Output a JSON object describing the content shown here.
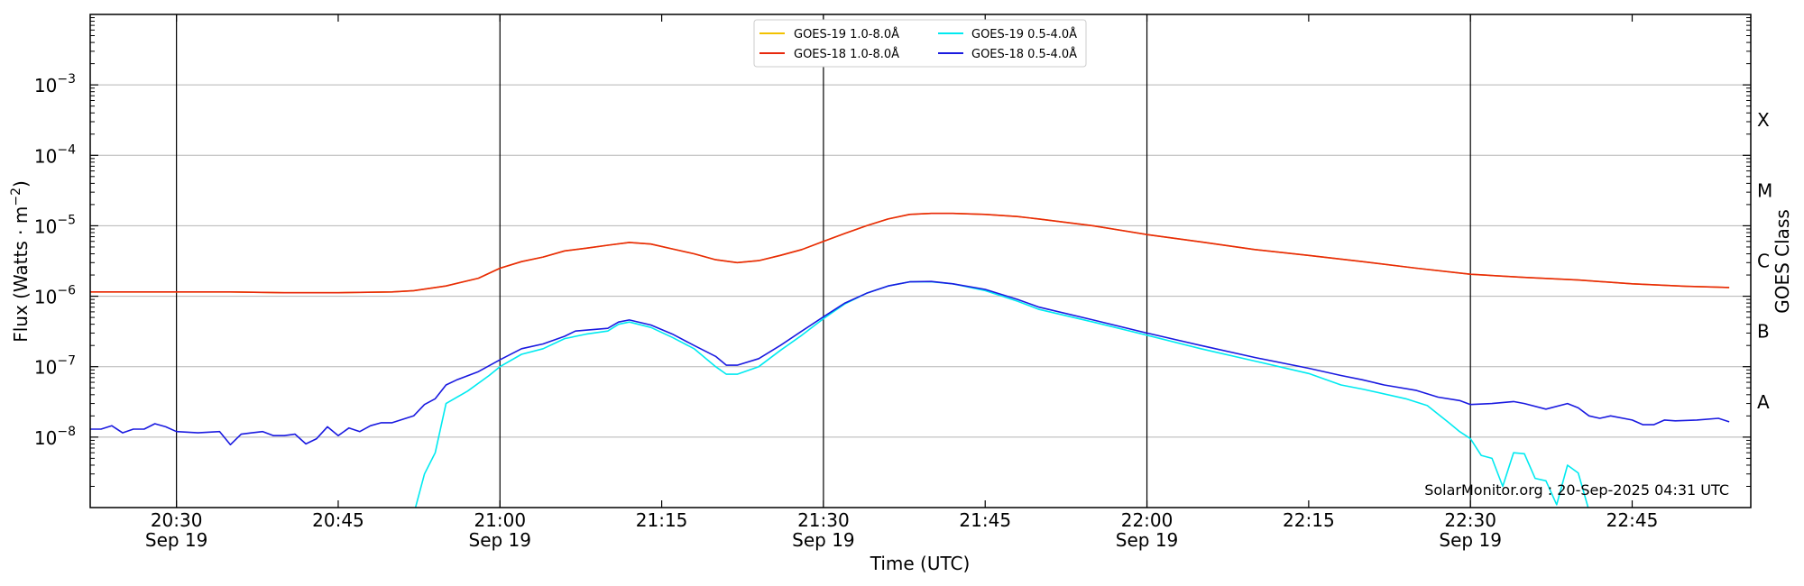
{
  "chart_data": {
    "type": "line",
    "ylabel_main": "Flux (Watts · m",
    "ylabel_sup": "−2",
    "ylabel_close": ")",
    "xlabel": "Time (UTC)",
    "right_label": "GOES Class",
    "y_scale": "log",
    "ylim": [
      1e-09,
      0.01
    ],
    "xlim_minutes": [
      1222,
      1376
    ],
    "grid_horizontal": true,
    "vertical_lines_at": [
      "20:30",
      "21:00",
      "21:30",
      "22:00",
      "22:30"
    ],
    "x_ticks": [
      {
        "t": 1230,
        "label": "20:30",
        "date": "Sep 19"
      },
      {
        "t": 1245,
        "label": "20:45",
        "date": ""
      },
      {
        "t": 1260,
        "label": "21:00",
        "date": "Sep 19"
      },
      {
        "t": 1275,
        "label": "21:15",
        "date": ""
      },
      {
        "t": 1290,
        "label": "21:30",
        "date": "Sep 19"
      },
      {
        "t": 1305,
        "label": "21:45",
        "date": ""
      },
      {
        "t": 1320,
        "label": "22:00",
        "date": "Sep 19"
      },
      {
        "t": 1335,
        "label": "22:15",
        "date": ""
      },
      {
        "t": 1350,
        "label": "22:30",
        "date": "Sep 19"
      },
      {
        "t": 1365,
        "label": "22:45",
        "date": ""
      }
    ],
    "y_ticks": [
      {
        "exp": -8,
        "label": "10"
      },
      {
        "exp": -7,
        "label": "10"
      },
      {
        "exp": -6,
        "label": "10"
      },
      {
        "exp": -5,
        "label": "10"
      },
      {
        "exp": -4,
        "label": "10"
      },
      {
        "exp": -3,
        "label": "10"
      }
    ],
    "goes_classes": [
      {
        "label": "A",
        "exp": -7.5
      },
      {
        "label": "B",
        "exp": -6.5
      },
      {
        "label": "C",
        "exp": -5.5
      },
      {
        "label": "M",
        "exp": -4.5
      },
      {
        "label": "X",
        "exp": -3.5
      }
    ],
    "legend_position": "top-center",
    "credit": "SolarMonitor.org : 20-Sep-2025 04:31 UTC",
    "series": [
      {
        "name": "GOES-19 1.0-8.0Å",
        "color": "#f2c200",
        "points": [
          [
            "20:22",
            1.15e-06
          ],
          [
            "20:30",
            1.15e-06
          ],
          [
            "20:35",
            1.15e-06
          ],
          [
            "20:40",
            1.12e-06
          ],
          [
            "20:45",
            1.12e-06
          ],
          [
            "20:50",
            1.15e-06
          ],
          [
            "20:52",
            1.2e-06
          ],
          [
            "20:55",
            1.4e-06
          ],
          [
            "20:58",
            1.8e-06
          ],
          [
            "21:00",
            2.5e-06
          ],
          [
            "21:02",
            3.1e-06
          ],
          [
            "21:04",
            3.6e-06
          ],
          [
            "21:06",
            4.4e-06
          ],
          [
            "21:08",
            4.8e-06
          ],
          [
            "21:10",
            5.3e-06
          ],
          [
            "21:12",
            5.8e-06
          ],
          [
            "21:14",
            5.5e-06
          ],
          [
            "21:16",
            4.7e-06
          ],
          [
            "21:18",
            4e-06
          ],
          [
            "21:20",
            3.3e-06
          ],
          [
            "21:22",
            3e-06
          ],
          [
            "21:24",
            3.2e-06
          ],
          [
            "21:26",
            3.8e-06
          ],
          [
            "21:28",
            4.6e-06
          ],
          [
            "21:30",
            6e-06
          ],
          [
            "21:32",
            7.8e-06
          ],
          [
            "21:34",
            1e-05
          ],
          [
            "21:36",
            1.25e-05
          ],
          [
            "21:38",
            1.45e-05
          ],
          [
            "21:40",
            1.5e-05
          ],
          [
            "21:42",
            1.5e-05
          ],
          [
            "21:45",
            1.45e-05
          ],
          [
            "21:48",
            1.35e-05
          ],
          [
            "21:50",
            1.25e-05
          ],
          [
            "21:55",
            1e-05
          ],
          [
            "22:00",
            7.5e-06
          ],
          [
            "22:05",
            5.9e-06
          ],
          [
            "22:10",
            4.6e-06
          ],
          [
            "22:15",
            3.8e-06
          ],
          [
            "22:20",
            3.1e-06
          ],
          [
            "22:25",
            2.5e-06
          ],
          [
            "22:30",
            2.05e-06
          ],
          [
            "22:35",
            1.85e-06
          ],
          [
            "22:40",
            1.7e-06
          ],
          [
            "22:45",
            1.5e-06
          ],
          [
            "22:50",
            1.38e-06
          ],
          [
            "22:54",
            1.33e-06
          ]
        ]
      },
      {
        "name": "GOES-18 1.0-8.0Å",
        "color": "#e8280c",
        "points": [
          [
            "20:22",
            1.15e-06
          ],
          [
            "20:30",
            1.15e-06
          ],
          [
            "20:35",
            1.15e-06
          ],
          [
            "20:40",
            1.12e-06
          ],
          [
            "20:45",
            1.12e-06
          ],
          [
            "20:50",
            1.15e-06
          ],
          [
            "20:52",
            1.2e-06
          ],
          [
            "20:55",
            1.4e-06
          ],
          [
            "20:58",
            1.8e-06
          ],
          [
            "21:00",
            2.5e-06
          ],
          [
            "21:02",
            3.1e-06
          ],
          [
            "21:04",
            3.6e-06
          ],
          [
            "21:06",
            4.4e-06
          ],
          [
            "21:08",
            4.8e-06
          ],
          [
            "21:10",
            5.3e-06
          ],
          [
            "21:12",
            5.8e-06
          ],
          [
            "21:14",
            5.5e-06
          ],
          [
            "21:16",
            4.7e-06
          ],
          [
            "21:18",
            4e-06
          ],
          [
            "21:20",
            3.3e-06
          ],
          [
            "21:22",
            3e-06
          ],
          [
            "21:24",
            3.2e-06
          ],
          [
            "21:26",
            3.8e-06
          ],
          [
            "21:28",
            4.6e-06
          ],
          [
            "21:30",
            6e-06
          ],
          [
            "21:32",
            7.8e-06
          ],
          [
            "21:34",
            1e-05
          ],
          [
            "21:36",
            1.25e-05
          ],
          [
            "21:38",
            1.45e-05
          ],
          [
            "21:40",
            1.5e-05
          ],
          [
            "21:42",
            1.5e-05
          ],
          [
            "21:45",
            1.45e-05
          ],
          [
            "21:48",
            1.35e-05
          ],
          [
            "21:50",
            1.25e-05
          ],
          [
            "21:55",
            1e-05
          ],
          [
            "22:00",
            7.5e-06
          ],
          [
            "22:05",
            5.9e-06
          ],
          [
            "22:10",
            4.6e-06
          ],
          [
            "22:15",
            3.8e-06
          ],
          [
            "22:20",
            3.1e-06
          ],
          [
            "22:25",
            2.5e-06
          ],
          [
            "22:30",
            2.05e-06
          ],
          [
            "22:35",
            1.85e-06
          ],
          [
            "22:40",
            1.7e-06
          ],
          [
            "22:45",
            1.5e-06
          ],
          [
            "22:50",
            1.38e-06
          ],
          [
            "22:54",
            1.33e-06
          ]
        ]
      },
      {
        "name": "GOES-19 0.5-4.0Å",
        "color": "#00eaf0",
        "points": [
          [
            "20:52",
            8e-10
          ],
          [
            "20:53",
            3e-09
          ],
          [
            "20:54",
            6e-09
          ],
          [
            "20:55",
            3e-08
          ],
          [
            "20:57",
            4.5e-08
          ],
          [
            "20:59",
            7.5e-08
          ],
          [
            "21:00",
            1e-07
          ],
          [
            "21:02",
            1.5e-07
          ],
          [
            "21:04",
            1.8e-07
          ],
          [
            "21:06",
            2.5e-07
          ],
          [
            "21:08",
            2.9e-07
          ],
          [
            "21:10",
            3.2e-07
          ],
          [
            "21:11",
            4e-07
          ],
          [
            "21:12",
            4.3e-07
          ],
          [
            "21:14",
            3.6e-07
          ],
          [
            "21:16",
            2.6e-07
          ],
          [
            "21:18",
            1.8e-07
          ],
          [
            "21:20",
            1e-07
          ],
          [
            "21:21",
            7.8e-08
          ],
          [
            "21:22",
            7.8e-08
          ],
          [
            "21:24",
            1e-07
          ],
          [
            "21:26",
            1.7e-07
          ],
          [
            "21:28",
            2.8e-07
          ],
          [
            "21:30",
            4.8e-07
          ],
          [
            "21:32",
            7.8e-07
          ],
          [
            "21:34",
            1.1e-06
          ],
          [
            "21:36",
            1.4e-06
          ],
          [
            "21:38",
            1.6e-06
          ],
          [
            "21:40",
            1.6e-06
          ],
          [
            "21:42",
            1.5e-06
          ],
          [
            "21:45",
            1.2e-06
          ],
          [
            "21:48",
            8.5e-07
          ],
          [
            "21:50",
            6.5e-07
          ],
          [
            "21:55",
            4.3e-07
          ],
          [
            "22:00",
            2.8e-07
          ],
          [
            "22:05",
            1.8e-07
          ],
          [
            "22:10",
            1.2e-07
          ],
          [
            "22:15",
            8e-08
          ],
          [
            "22:18",
            5.5e-08
          ],
          [
            "22:20",
            4.8e-08
          ],
          [
            "22:24",
            3.5e-08
          ],
          [
            "22:26",
            2.8e-08
          ],
          [
            "22:28",
            1.6e-08
          ],
          [
            "22:29",
            1.2e-08
          ],
          [
            "22:30",
            9.5e-09
          ],
          [
            "22:31",
            5.5e-09
          ],
          [
            "22:32",
            5e-09
          ],
          [
            "22:33",
            2e-09
          ],
          [
            "22:34",
            6e-09
          ],
          [
            "22:35",
            5.8e-09
          ],
          [
            "22:36",
            2.6e-09
          ],
          [
            "22:37",
            2.4e-09
          ],
          [
            "22:38",
            1.1e-09
          ],
          [
            "22:39",
            4e-09
          ],
          [
            "22:40",
            3.1e-09
          ],
          [
            "22:41",
            9e-10
          ]
        ]
      },
      {
        "name": "GOES-18 0.5-4.0Å",
        "color": "#1a1ae0",
        "points": [
          [
            "20:22",
            1.3e-08
          ],
          [
            "20:23",
            1.3e-08
          ],
          [
            "20:24",
            1.45e-08
          ],
          [
            "20:25",
            1.15e-08
          ],
          [
            "20:26",
            1.3e-08
          ],
          [
            "20:27",
            1.3e-08
          ],
          [
            "20:28",
            1.55e-08
          ],
          [
            "20:29",
            1.4e-08
          ],
          [
            "20:30",
            1.2e-08
          ],
          [
            "20:32",
            1.15e-08
          ],
          [
            "20:34",
            1.2e-08
          ],
          [
            "20:35",
            7.8e-09
          ],
          [
            "20:36",
            1.1e-08
          ],
          [
            "20:37",
            1.15e-08
          ],
          [
            "20:38",
            1.2e-08
          ],
          [
            "20:39",
            1.05e-08
          ],
          [
            "20:40",
            1.05e-08
          ],
          [
            "20:41",
            1.1e-08
          ],
          [
            "20:42",
            8e-09
          ],
          [
            "20:43",
            9.5e-09
          ],
          [
            "20:44",
            1.4e-08
          ],
          [
            "20:45",
            1.05e-08
          ],
          [
            "20:46",
            1.35e-08
          ],
          [
            "20:47",
            1.2e-08
          ],
          [
            "20:48",
            1.45e-08
          ],
          [
            "20:49",
            1.6e-08
          ],
          [
            "20:50",
            1.6e-08
          ],
          [
            "20:52",
            2e-08
          ],
          [
            "20:53",
            2.9e-08
          ],
          [
            "20:54",
            3.5e-08
          ],
          [
            "20:55",
            5.5e-08
          ],
          [
            "20:56",
            6.5e-08
          ],
          [
            "20:58",
            8.5e-08
          ],
          [
            "21:00",
            1.25e-07
          ],
          [
            "21:02",
            1.8e-07
          ],
          [
            "21:04",
            2.1e-07
          ],
          [
            "21:06",
            2.7e-07
          ],
          [
            "21:07",
            3.2e-07
          ],
          [
            "21:08",
            3.3e-07
          ],
          [
            "21:10",
            3.5e-07
          ],
          [
            "21:11",
            4.3e-07
          ],
          [
            "21:12",
            4.6e-07
          ],
          [
            "21:14",
            3.9e-07
          ],
          [
            "21:16",
            2.9e-07
          ],
          [
            "21:18",
            2e-07
          ],
          [
            "21:20",
            1.4e-07
          ],
          [
            "21:21",
            1.05e-07
          ],
          [
            "21:22",
            1.05e-07
          ],
          [
            "21:24",
            1.3e-07
          ],
          [
            "21:26",
            2e-07
          ],
          [
            "21:28",
            3.2e-07
          ],
          [
            "21:30",
            5.1e-07
          ],
          [
            "21:32",
            8e-07
          ],
          [
            "21:34",
            1.1e-06
          ],
          [
            "21:36",
            1.4e-06
          ],
          [
            "21:38",
            1.6e-06
          ],
          [
            "21:40",
            1.62e-06
          ],
          [
            "21:42",
            1.5e-06
          ],
          [
            "21:45",
            1.25e-06
          ],
          [
            "21:48",
            9e-07
          ],
          [
            "21:50",
            7e-07
          ],
          [
            "21:55",
            4.6e-07
          ],
          [
            "22:00",
            3e-07
          ],
          [
            "22:05",
            2e-07
          ],
          [
            "22:10",
            1.35e-07
          ],
          [
            "22:15",
            9.5e-08
          ],
          [
            "22:18",
            7.5e-08
          ],
          [
            "22:20",
            6.5e-08
          ],
          [
            "22:22",
            5.5e-08
          ],
          [
            "22:25",
            4.6e-08
          ],
          [
            "22:27",
            3.7e-08
          ],
          [
            "22:29",
            3.3e-08
          ],
          [
            "22:30",
            2.9e-08
          ],
          [
            "22:32",
            3e-08
          ],
          [
            "22:34",
            3.2e-08
          ],
          [
            "22:35",
            3e-08
          ],
          [
            "22:37",
            2.5e-08
          ],
          [
            "22:39",
            3e-08
          ],
          [
            "22:40",
            2.6e-08
          ],
          [
            "22:41",
            2e-08
          ],
          [
            "22:42",
            1.85e-08
          ],
          [
            "22:43",
            2e-08
          ],
          [
            "22:45",
            1.75e-08
          ],
          [
            "22:46",
            1.5e-08
          ],
          [
            "22:47",
            1.5e-08
          ],
          [
            "22:48",
            1.75e-08
          ],
          [
            "22:49",
            1.7e-08
          ],
          [
            "22:51",
            1.75e-08
          ],
          [
            "22:53",
            1.85e-08
          ],
          [
            "22:54",
            1.65e-08
          ]
        ]
      }
    ]
  }
}
